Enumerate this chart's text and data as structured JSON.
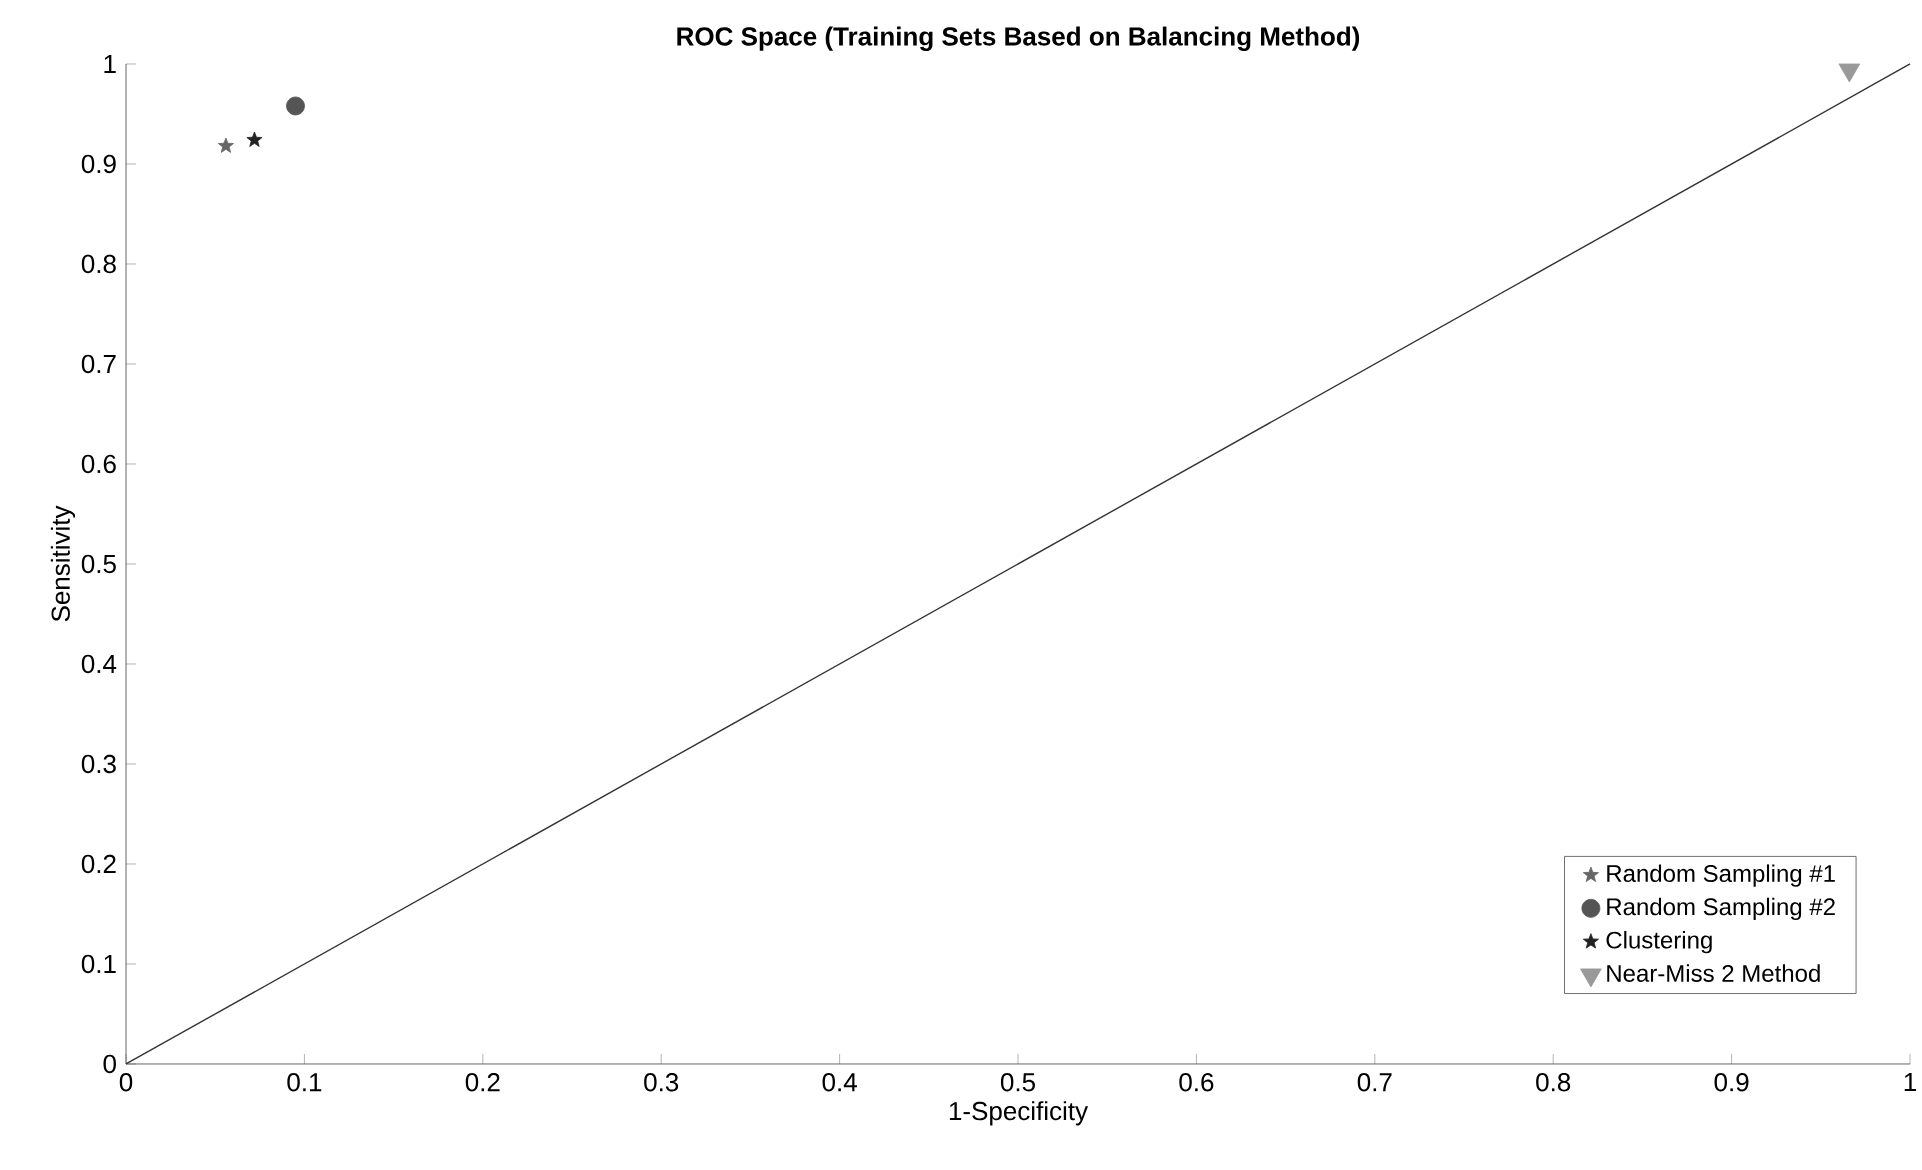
{
  "chart_data": {
    "type": "scatter",
    "title": "ROC Space (Training Sets Based on Balancing Method)",
    "xlabel": "1-Specificity",
    "ylabel": "Sensitivity",
    "xlim": [
      0,
      1
    ],
    "ylim": [
      0,
      1
    ],
    "xticks": [
      0,
      0.1,
      0.2,
      0.3,
      0.4,
      0.5,
      0.6,
      0.7,
      0.8,
      0.9,
      1
    ],
    "yticks": [
      0,
      0.1,
      0.2,
      0.3,
      0.4,
      0.5,
      0.6,
      0.7,
      0.8,
      0.9,
      1
    ],
    "grid": false,
    "legend": "bottom right",
    "series": [
      {
        "name": "Random Sampling #1",
        "color": "#666666",
        "marker": "star",
        "x": [
          0.056
        ],
        "values": [
          0.918
        ]
      },
      {
        "name": "Random Sampling #2",
        "color": "#555555",
        "marker": "circle",
        "x": [
          0.095
        ],
        "values": [
          0.958
        ]
      },
      {
        "name": "Clustering",
        "color": "#222222",
        "marker": "star",
        "x": [
          0.072
        ],
        "values": [
          0.924
        ]
      },
      {
        "name": "Near-Miss 2 Method",
        "color": "#999999",
        "marker": "triangle",
        "x": [
          0.966
        ],
        "values": [
          0.994
        ]
      },
      {
        "type": "line",
        "color": "#333333",
        "marker": "none",
        "line_style": "solid",
        "x": [
          0,
          1
        ],
        "values": [
          0,
          1
        ]
      }
    ]
  }
}
